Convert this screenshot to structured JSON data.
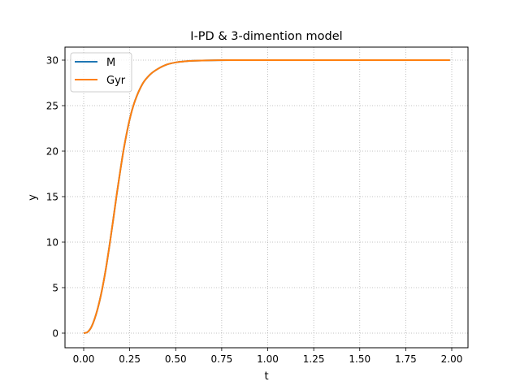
{
  "chart_data": {
    "type": "line",
    "title": "I-PD & 3-dimention model",
    "xlabel": "t",
    "ylabel": "y",
    "xlim": [
      -0.1,
      2.08
    ],
    "ylim": [
      -1.5,
      31.5
    ],
    "xticks": [
      0.0,
      0.25,
      0.5,
      0.75,
      1.0,
      1.25,
      1.5,
      1.75,
      2.0
    ],
    "xtick_labels": [
      "0.00",
      "0.25",
      "0.50",
      "0.75",
      "1.00",
      "1.25",
      "1.50",
      "1.75",
      "2.00"
    ],
    "yticks": [
      0,
      5,
      10,
      15,
      20,
      25,
      30
    ],
    "ytick_labels": [
      "0",
      "5",
      "10",
      "15",
      "20",
      "25",
      "30"
    ],
    "grid": true,
    "grid_style": "dotted",
    "legend_position": "upper left",
    "x": [
      0.0,
      0.02,
      0.04,
      0.06,
      0.08,
      0.1,
      0.12,
      0.14,
      0.16,
      0.18,
      0.2,
      0.22,
      0.25,
      0.28,
      0.32,
      0.36,
      0.4,
      0.45,
      0.5,
      0.55,
      0.6,
      0.7,
      0.8,
      1.0,
      1.25,
      1.5,
      1.75,
      1.99
    ],
    "series": [
      {
        "name": "M",
        "color": "#1f77b4",
        "values": [
          0.0,
          0.1,
          0.6,
          1.6,
          3.0,
          4.8,
          7.0,
          9.6,
          12.4,
          15.3,
          18.0,
          20.5,
          23.5,
          25.6,
          27.4,
          28.4,
          29.0,
          29.5,
          29.75,
          29.87,
          29.93,
          29.98,
          30.0,
          30.0,
          30.0,
          30.0,
          30.0,
          30.0
        ]
      },
      {
        "name": "Gyr",
        "color": "#ff7f0e",
        "values": [
          0.0,
          0.1,
          0.6,
          1.6,
          3.0,
          4.8,
          7.0,
          9.6,
          12.4,
          15.3,
          18.0,
          20.5,
          23.5,
          25.6,
          27.4,
          28.4,
          29.0,
          29.5,
          29.75,
          29.87,
          29.93,
          29.98,
          30.0,
          30.0,
          30.0,
          30.0,
          30.0,
          30.0
        ]
      }
    ]
  }
}
